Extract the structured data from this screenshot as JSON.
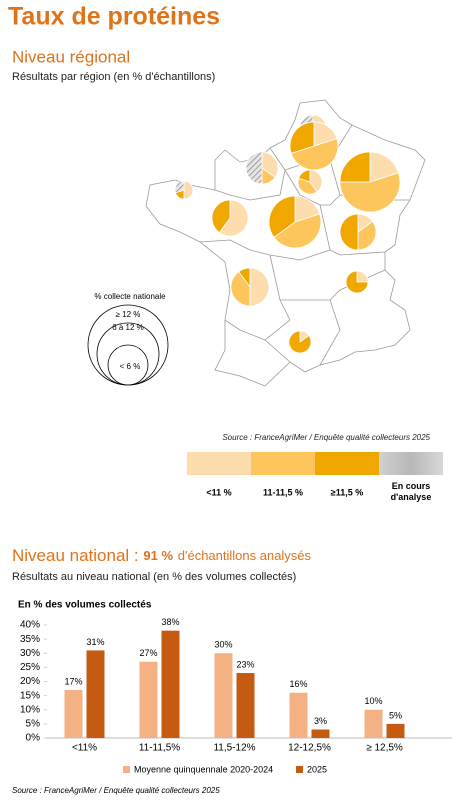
{
  "title": "Taux de protéines",
  "regional": {
    "heading": "Niveau régional",
    "subtitle": "Résultats par région (en % d'échantillons)",
    "size_legend": {
      "title": "% collecte nationale",
      "labels": [
        "≥ 12 %",
        "6 à 12 %",
        "< 6 %"
      ]
    },
    "source": "Source : FranceAgriMer / Enquête qualité collecteurs 2025",
    "legend": [
      {
        "label": "<11 %",
        "color": "#fddcae"
      },
      {
        "label": "11-11,5 %",
        "color": "#fcc65c"
      },
      {
        "label": "≥11,5 %",
        "color": "#f0a800"
      },
      {
        "label": "En cours d'analyse",
        "color": "#c8c8c8"
      }
    ],
    "pies": [
      [
        30,
        0,
        0,
        70
      ],
      [
        20,
        50,
        30,
        0
      ],
      [
        35,
        15,
        0,
        50
      ],
      [
        40,
        40,
        20,
        0
      ],
      [
        20,
        55,
        25,
        0
      ],
      [
        50,
        0,
        20,
        30
      ],
      [
        60,
        0,
        40,
        0
      ],
      [
        20,
        45,
        35,
        0
      ],
      [
        15,
        35,
        50,
        0
      ],
      [
        50,
        40,
        10,
        0
      ],
      [
        25,
        0,
        75,
        0
      ],
      [
        15,
        0,
        85,
        0
      ]
    ]
  },
  "national": {
    "heading": "Niveau national :",
    "highlight": "91 %",
    "heading_rest": "d'échantillons analysés",
    "subtitle": "Résultats au niveau national (en % des volumes collectés)"
  },
  "chart_data": {
    "type": "bar",
    "y_label": "En % des volumes collectés",
    "categories": [
      "<11%",
      "11-11,5%",
      "11,5-12%",
      "12-12,5%",
      "≥ 12,5%"
    ],
    "series": [
      {
        "name": "Moyenne quinquennale 2020-2024",
        "color": "#f4b183",
        "values": [
          17,
          27,
          30,
          16,
          10
        ],
        "value_labels": [
          "17%",
          "27%",
          "30%",
          "16%",
          "10%"
        ]
      },
      {
        "name": "2025",
        "color": "#c55a11",
        "values": [
          31,
          38,
          23,
          3,
          5
        ],
        "value_labels": [
          "31%",
          "38%",
          "23%",
          "3%",
          "5%"
        ]
      }
    ],
    "ylim": [
      0,
      40
    ],
    "yticks": [
      {
        "value": 0,
        "label": "0%"
      },
      {
        "value": 5,
        "label": "5%"
      },
      {
        "value": 10,
        "label": "10%"
      },
      {
        "value": 15,
        "label": "15%"
      },
      {
        "value": 20,
        "label": "20%"
      },
      {
        "value": 25,
        "label": "25%"
      },
      {
        "value": 30,
        "label": "30%"
      },
      {
        "value": 35,
        "label": "35%"
      },
      {
        "value": 40,
        "label": "40%"
      }
    ],
    "source": "Source : FranceAgriMer / Enquête qualité collecteurs 2025"
  }
}
